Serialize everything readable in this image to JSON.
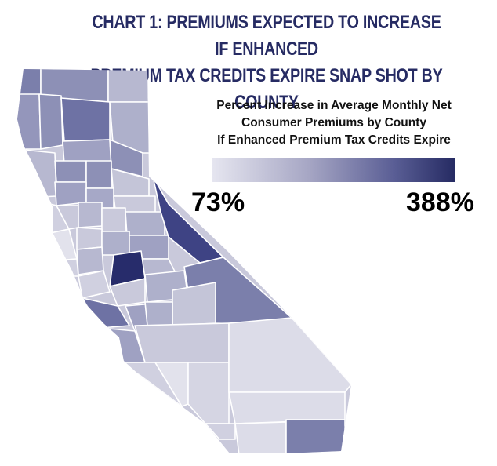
{
  "title": {
    "line1": "CHART 1: PREMIUMS EXPECTED TO INCREASE IF ENHANCED",
    "line2": "PREMIUM TAX CREDITS EXPIRE SNAP SHOT BY COUNTY"
  },
  "legend": {
    "title_line1": "Percent Increase in Average Monthly Net",
    "title_line2": "Consumer Premiums by County",
    "title_line3": "If Enhanced Premium Tax Credits Expire",
    "min_label": "73%",
    "max_label": "388%",
    "color_scale": [
      "#e6e6f0",
      "#a6a6c4",
      "#5a5e95",
      "#262b63"
    ]
  }
}
